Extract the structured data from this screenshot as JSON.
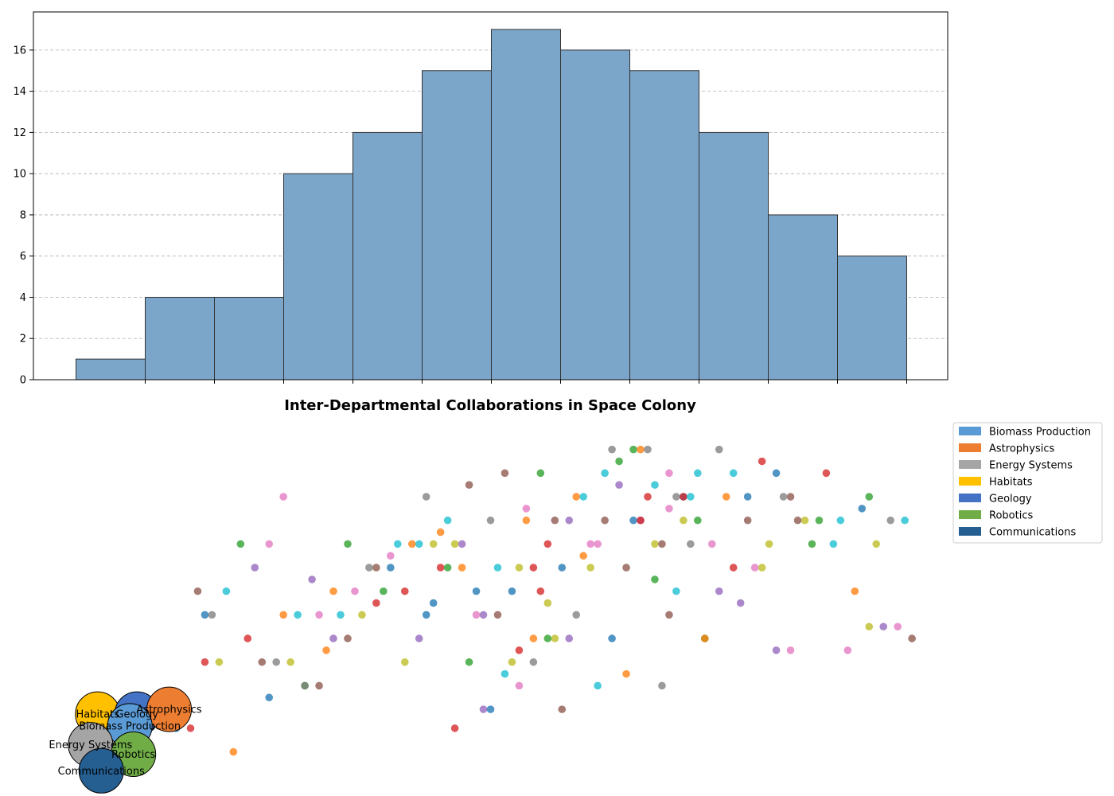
{
  "chart_data": [
    {
      "type": "bar",
      "title": "",
      "xlabel": "",
      "ylabel": "",
      "bins": 12,
      "values": [
        1,
        4,
        4,
        10,
        12,
        15,
        17,
        16,
        15,
        12,
        8,
        6
      ],
      "ylim": [
        0,
        17.85
      ],
      "yticks": [
        0,
        2,
        4,
        6,
        8,
        10,
        12,
        14,
        16
      ],
      "grid": "y-dashed",
      "bar_color": "#7ba6ca",
      "edge_color": "#333333"
    },
    {
      "type": "scatter",
      "title": "Inter-Departmental Collaborations in Space Colony",
      "legend_position": "outside-top-right",
      "legend": [
        {
          "label": "Biomass Production",
          "color": "#5b9bd5"
        },
        {
          "label": "Astrophysics",
          "color": "#ed7d31"
        },
        {
          "label": "Energy Systems",
          "color": "#a5a5a5"
        },
        {
          "label": "Habitats",
          "color": "#ffc000"
        },
        {
          "label": "Geology",
          "color": "#4472c4"
        },
        {
          "label": "Robotics",
          "color": "#70ad47"
        },
        {
          "label": "Communications",
          "color": "#255e91"
        }
      ],
      "nodes": [
        {
          "label": "Habitats",
          "x": 1.1,
          "y": 3.3,
          "color": "#ffc000"
        },
        {
          "label": "Geology",
          "x": 1.65,
          "y": 3.3,
          "color": "#4472c4"
        },
        {
          "label": "Astrophysics",
          "x": 2.1,
          "y": 3.5,
          "color": "#ed7d31"
        },
        {
          "label": "Biomass Production",
          "x": 1.55,
          "y": 2.8,
          "color": "#5b9bd5"
        },
        {
          "label": "Energy Systems",
          "x": 1.0,
          "y": 2.0,
          "color": "#a5a5a5"
        },
        {
          "label": "Robotics",
          "x": 1.6,
          "y": 1.6,
          "color": "#70ad47"
        },
        {
          "label": "Communications",
          "x": 1.15,
          "y": 0.9,
          "color": "#255e91"
        }
      ],
      "point_palette": [
        "#1f77b4",
        "#ff7f0e",
        "#2ca02c",
        "#d62728",
        "#9467bd",
        "#8c564b",
        "#e377c2",
        "#7f7f7f",
        "#bcbd22",
        "#17becf"
      ],
      "points": [
        [
          2.2,
          2.7,
          0
        ],
        [
          3.0,
          1.7,
          1
        ],
        [
          4.0,
          4.5,
          2
        ],
        [
          2.6,
          5.5,
          3
        ],
        [
          3.3,
          9.5,
          4
        ],
        [
          2.5,
          8.5,
          5
        ],
        [
          3.5,
          10.5,
          6
        ],
        [
          2.7,
          7.5,
          7
        ],
        [
          3.8,
          5.5,
          8
        ],
        [
          2.9,
          8.5,
          9
        ],
        [
          2.4,
          2.7,
          3
        ],
        [
          2.6,
          7.5,
          0
        ],
        [
          3.1,
          10.5,
          2
        ],
        [
          3.6,
          5.5,
          7
        ],
        [
          3.9,
          7.5,
          9
        ],
        [
          3.7,
          12.5,
          6
        ],
        [
          2.8,
          5.5,
          8
        ],
        [
          3.2,
          6.5,
          3
        ],
        [
          3.4,
          5.5,
          5
        ],
        [
          4.2,
          4.5,
          5
        ],
        [
          3.5,
          4.0,
          0
        ],
        [
          3.7,
          7.5,
          1
        ],
        [
          4.0,
          4.5,
          7
        ],
        [
          4.2,
          7.5,
          6
        ],
        [
          4.4,
          6.5,
          4
        ],
        [
          4.6,
          10.5,
          2
        ],
        [
          4.8,
          7.5,
          8
        ],
        [
          5.0,
          9.5,
          5
        ],
        [
          5.2,
          9.5,
          0
        ],
        [
          5.4,
          8.5,
          3
        ],
        [
          4.1,
          9.0,
          4
        ],
        [
          4.3,
          6.0,
          1
        ],
        [
          4.5,
          7.5,
          9
        ],
        [
          4.7,
          8.5,
          6
        ],
        [
          4.9,
          9.5,
          7
        ],
        [
          5.1,
          8.5,
          2
        ],
        [
          5.3,
          10.5,
          9
        ],
        [
          5.5,
          10.5,
          1
        ],
        [
          5.7,
          7.5,
          0
        ],
        [
          5.9,
          9.5,
          3
        ],
        [
          4.4,
          8.5,
          1
        ],
        [
          4.6,
          6.5,
          5
        ],
        [
          5.0,
          8.0,
          3
        ],
        [
          5.2,
          10.0,
          6
        ],
        [
          5.4,
          5.5,
          8
        ],
        [
          5.6,
          6.5,
          4
        ],
        [
          5.8,
          10.5,
          8
        ],
        [
          6.0,
          11.5,
          9
        ],
        [
          6.2,
          9.5,
          1
        ],
        [
          6.4,
          8.5,
          0
        ],
        [
          5.6,
          10.5,
          9
        ],
        [
          5.8,
          8.0,
          0
        ],
        [
          6.0,
          9.5,
          2
        ],
        [
          6.2,
          10.5,
          4
        ],
        [
          6.4,
          7.5,
          6
        ],
        [
          6.6,
          11.5,
          7
        ],
        [
          6.8,
          13.5,
          5
        ],
        [
          7.0,
          9.5,
          8
        ],
        [
          7.2,
          6.5,
          1
        ],
        [
          7.4,
          10.5,
          3
        ],
        [
          5.7,
          12.5,
          7
        ],
        [
          5.9,
          11.0,
          1
        ],
        [
          6.1,
          10.5,
          8
        ],
        [
          6.3,
          13.0,
          5
        ],
        [
          6.5,
          7.5,
          4
        ],
        [
          6.7,
          9.5,
          9
        ],
        [
          6.9,
          8.5,
          0
        ],
        [
          7.1,
          12.0,
          6
        ],
        [
          7.3,
          13.5,
          2
        ],
        [
          7.5,
          11.5,
          5
        ],
        [
          6.1,
          2.7,
          3
        ],
        [
          6.3,
          5.5,
          2
        ],
        [
          6.5,
          3.5,
          4
        ],
        [
          6.7,
          7.5,
          5
        ],
        [
          6.9,
          5.5,
          8
        ],
        [
          7.1,
          11.5,
          1
        ],
        [
          7.3,
          8.5,
          3
        ],
        [
          7.5,
          6.5,
          8
        ],
        [
          7.7,
          11.5,
          4
        ],
        [
          7.9,
          12.5,
          9
        ],
        [
          6.6,
          3.5,
          0
        ],
        [
          6.8,
          5.0,
          9
        ],
        [
          7.0,
          6.0,
          3
        ],
        [
          7.2,
          5.5,
          7
        ],
        [
          7.4,
          6.5,
          2
        ],
        [
          7.6,
          9.5,
          0
        ],
        [
          7.8,
          12.5,
          1
        ],
        [
          8.0,
          10.5,
          6
        ],
        [
          8.2,
          11.5,
          5
        ],
        [
          8.4,
          13.0,
          4
        ],
        [
          7.0,
          4.5,
          6
        ],
        [
          7.2,
          9.5,
          3
        ],
        [
          7.4,
          8.0,
          8
        ],
        [
          7.6,
          3.5,
          5
        ],
        [
          7.8,
          7.5,
          7
        ],
        [
          8.0,
          9.5,
          8
        ],
        [
          8.2,
          13.5,
          9
        ],
        [
          8.4,
          14.0,
          2
        ],
        [
          8.6,
          11.5,
          0
        ],
        [
          8.8,
          12.5,
          3
        ],
        [
          7.7,
          6.5,
          4
        ],
        [
          7.9,
          10.0,
          1
        ],
        [
          8.1,
          10.5,
          6
        ],
        [
          8.3,
          14.5,
          7
        ],
        [
          8.5,
          9.5,
          5
        ],
        [
          8.7,
          11.5,
          4
        ],
        [
          8.9,
          9.0,
          2
        ],
        [
          9.1,
          12.0,
          6
        ],
        [
          9.3,
          11.5,
          8
        ],
        [
          9.5,
          13.5,
          9
        ],
        [
          8.1,
          4.5,
          9
        ],
        [
          8.3,
          6.5,
          0
        ],
        [
          8.5,
          5.0,
          1
        ],
        [
          8.7,
          11.5,
          3
        ],
        [
          8.9,
          10.5,
          8
        ],
        [
          9.1,
          7.5,
          5
        ],
        [
          9.3,
          12.5,
          0
        ],
        [
          9.5,
          11.5,
          2
        ],
        [
          9.7,
          10.5,
          6
        ],
        [
          9.9,
          12.5,
          1
        ],
        [
          9.0,
          4.5,
          7
        ],
        [
          9.2,
          8.5,
          9
        ],
        [
          9.4,
          10.5,
          7
        ],
        [
          9.6,
          6.5,
          2
        ],
        [
          9.8,
          8.5,
          4
        ],
        [
          10.0,
          9.5,
          3
        ],
        [
          10.2,
          11.5,
          5
        ],
        [
          10.4,
          9.5,
          8
        ],
        [
          10.6,
          13.5,
          0
        ],
        [
          10.8,
          6.0,
          6
        ],
        [
          8.6,
          14.5,
          2
        ],
        [
          8.7,
          14.5,
          1
        ],
        [
          8.8,
          14.5,
          7
        ],
        [
          8.9,
          13.0,
          9
        ],
        [
          9.0,
          10.5,
          5
        ],
        [
          9.1,
          13.5,
          6
        ],
        [
          9.2,
          12.5,
          7
        ],
        [
          9.3,
          12.5,
          3
        ],
        [
          9.4,
          12.5,
          9
        ],
        [
          9.6,
          6.5,
          1
        ],
        [
          9.8,
          14.5,
          7
        ],
        [
          10.0,
          13.5,
          9
        ],
        [
          10.2,
          12.5,
          0
        ],
        [
          10.4,
          14.0,
          3
        ],
        [
          10.6,
          6.0,
          4
        ],
        [
          10.8,
          12.5,
          5
        ],
        [
          11.0,
          11.5,
          8
        ],
        [
          11.2,
          11.5,
          2
        ],
        [
          11.4,
          10.5,
          9
        ],
        [
          11.6,
          6.0,
          6
        ],
        [
          10.1,
          8.0,
          4
        ],
        [
          10.3,
          9.5,
          6
        ],
        [
          10.5,
          10.5,
          8
        ],
        [
          10.7,
          12.5,
          7
        ],
        [
          10.9,
          11.5,
          5
        ],
        [
          11.1,
          10.5,
          2
        ],
        [
          11.3,
          13.5,
          3
        ],
        [
          11.5,
          11.5,
          9
        ],
        [
          11.7,
          8.5,
          1
        ],
        [
          11.9,
          7.0,
          8
        ],
        [
          12.0,
          10.5,
          8
        ],
        [
          12.2,
          11.5,
          7
        ],
        [
          12.4,
          11.5,
          9
        ],
        [
          12.1,
          7.0,
          4
        ],
        [
          12.3,
          7.0,
          6
        ],
        [
          11.8,
          12.0,
          0
        ],
        [
          11.9,
          12.5,
          2
        ],
        [
          12.5,
          6.5,
          5
        ]
      ],
      "xlim": [
        0.2,
        13.0
      ],
      "ylim": [
        0.0,
        15.5
      ]
    }
  ]
}
